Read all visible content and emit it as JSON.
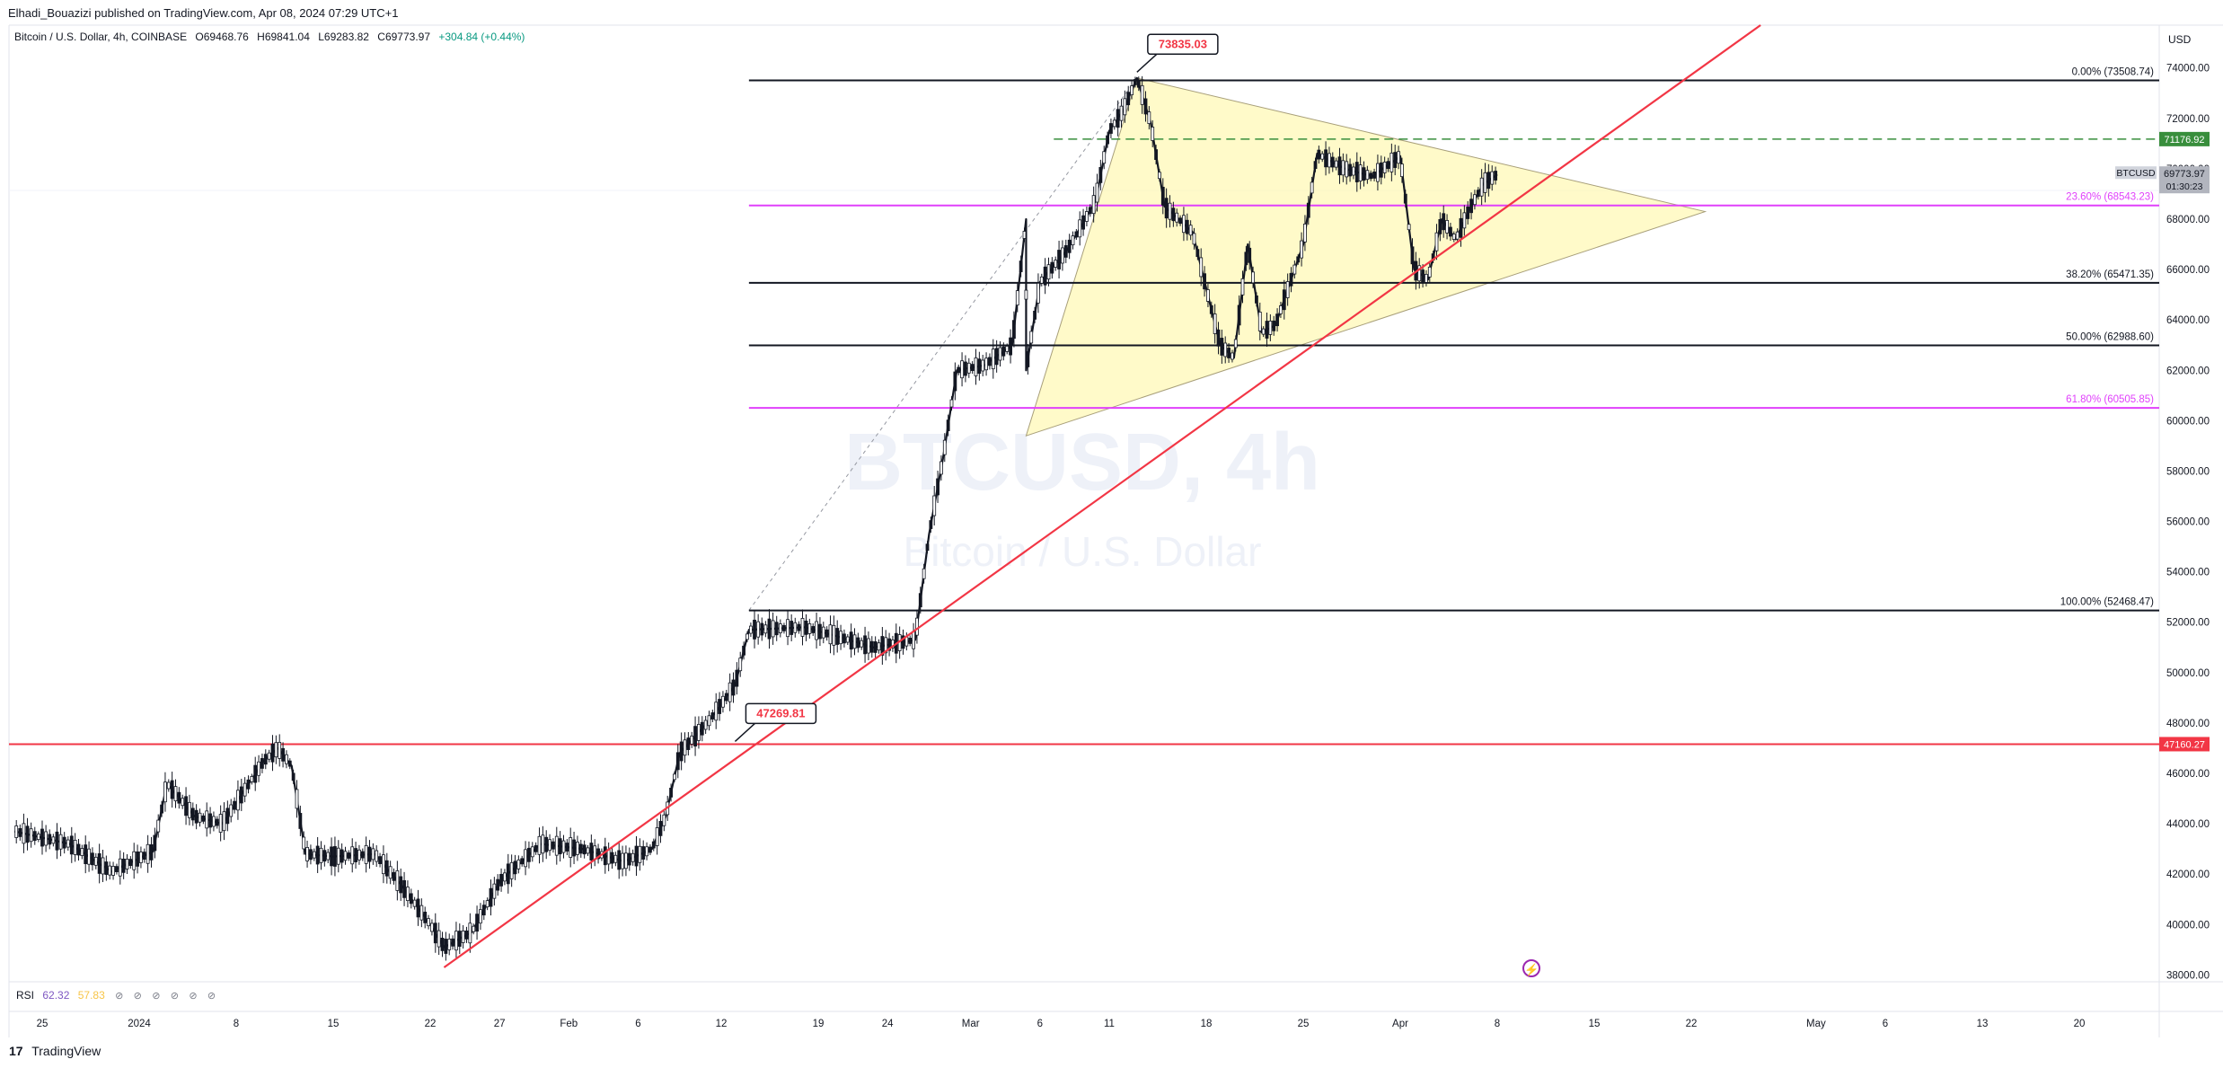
{
  "header": {
    "published": "Elhadi_Bouazizi published on TradingView.com, Apr 08, 2024 07:29 UTC+1"
  },
  "symbol": {
    "name": "Bitcoin / U.S. Dollar, 4h, COINBASE",
    "open": "O69468.76",
    "high": "H69841.04",
    "low": "L69283.82",
    "close": "C69773.97",
    "change": "+304.84 (+0.44%)"
  },
  "watermark": {
    "line1": "BTCUSD, 4h",
    "line2": "Bitcoin / U.S. Dollar"
  },
  "currency": "USD",
  "price_tag": {
    "symbol": "BTCUSD",
    "price": "69773.97",
    "countdown": "01:30:23"
  },
  "rsi": {
    "label": "RSI",
    "value1": "62.32",
    "value2": "57.83",
    "icons": [
      "eye-off-icon",
      "eye-off-icon",
      "eye-off-icon",
      "eye-off-icon",
      "eye-off-icon",
      "eye-off-icon"
    ]
  },
  "footer": {
    "logo": "17",
    "brand": "TradingView"
  },
  "colors": {
    "up": "#089981",
    "red": "#f23645",
    "magenta": "#e040fb",
    "triangle": "#fff59d",
    "green": "#388e3c"
  },
  "chart_data": {
    "type": "candlestick",
    "symbol": "BTCUSD",
    "interval": "4h",
    "ylim": [
      37800,
      75700
    ],
    "y_ticks": [
      "38000.00",
      "40000.00",
      "42000.00",
      "44000.00",
      "46000.00",
      "48000.00",
      "50000.00",
      "52000.00",
      "54000.00",
      "56000.00",
      "58000.00",
      "60000.00",
      "62000.00",
      "64000.00",
      "66000.00",
      "68000.00",
      "70000.00",
      "72000.00",
      "74000.00"
    ],
    "x_ticks": [
      {
        "label": "25",
        "date": "2023-12-25"
      },
      {
        "label": "2024",
        "date": "2024-01-01"
      },
      {
        "label": "8",
        "date": "2024-01-08"
      },
      {
        "label": "15",
        "date": "2024-01-15"
      },
      {
        "label": "22",
        "date": "2024-01-22"
      },
      {
        "label": "27",
        "date": "2024-01-27"
      },
      {
        "label": "Feb",
        "date": "2024-02-01"
      },
      {
        "label": "6",
        "date": "2024-02-06"
      },
      {
        "label": "12",
        "date": "2024-02-12"
      },
      {
        "label": "19",
        "date": "2024-02-19"
      },
      {
        "label": "24",
        "date": "2024-02-24"
      },
      {
        "label": "Mar",
        "date": "2024-03-01"
      },
      {
        "label": "6",
        "date": "2024-03-06"
      },
      {
        "label": "11",
        "date": "2024-03-11"
      },
      {
        "label": "18",
        "date": "2024-03-18"
      },
      {
        "label": "25",
        "date": "2024-03-25"
      },
      {
        "label": "Apr",
        "date": "2024-04-01"
      },
      {
        "label": "8",
        "date": "2024-04-08"
      },
      {
        "label": "15",
        "date": "2024-04-15"
      },
      {
        "label": "22",
        "date": "2024-04-22"
      },
      {
        "label": "May",
        "date": "2024-05-01"
      },
      {
        "label": "6",
        "date": "2024-05-06"
      },
      {
        "label": "13",
        "date": "2024-05-13"
      },
      {
        "label": "20",
        "date": "2024-05-20"
      }
    ],
    "price_path": [
      [
        "2023-12-23",
        43700
      ],
      [
        "2023-12-27",
        43200
      ],
      [
        "2023-12-30",
        42100
      ],
      [
        "2024-01-02",
        42900
      ],
      [
        "2024-01-03",
        45600
      ],
      [
        "2024-01-05",
        44300
      ],
      [
        "2024-01-07",
        44000
      ],
      [
        "2024-01-10",
        46500
      ],
      [
        "2024-01-11",
        47000
      ],
      [
        "2024-01-12",
        46300
      ],
      [
        "2024-01-13",
        42800
      ],
      [
        "2024-01-15",
        42700
      ],
      [
        "2024-01-18",
        42800
      ],
      [
        "2024-01-20",
        41500
      ],
      [
        "2024-01-22",
        40000
      ],
      [
        "2024-01-23",
        39100
      ],
      [
        "2024-01-25",
        39700
      ],
      [
        "2024-01-27",
        41700
      ],
      [
        "2024-01-30",
        43200
      ],
      [
        "2024-02-02",
        43000
      ],
      [
        "2024-02-05",
        42500
      ],
      [
        "2024-02-07",
        43000
      ],
      [
        "2024-02-08",
        44300
      ],
      [
        "2024-02-09",
        46800
      ],
      [
        "2024-02-11",
        48000
      ],
      [
        "2024-02-13",
        49500
      ],
      [
        "2024-02-14",
        51700
      ],
      [
        "2024-02-18",
        51800
      ],
      [
        "2024-02-20",
        51500
      ],
      [
        "2024-02-23",
        51000
      ],
      [
        "2024-02-26",
        51300
      ],
      [
        "2024-02-27",
        55500
      ],
      [
        "2024-02-28",
        58500
      ],
      [
        "2024-02-29",
        62000
      ],
      [
        "2024-03-02",
        62200
      ],
      [
        "2024-03-04",
        63000
      ],
      [
        "2024-03-05",
        68000
      ],
      [
        "2024-03-05",
        62000
      ],
      [
        "2024-03-06",
        65500
      ],
      [
        "2024-03-08",
        66800
      ],
      [
        "2024-03-10",
        68700
      ],
      [
        "2024-03-11",
        71500
      ],
      [
        "2024-03-12",
        72300
      ],
      [
        "2024-03-13",
        73600
      ],
      [
        "2024-03-14",
        71800
      ],
      [
        "2024-03-15",
        68500
      ],
      [
        "2024-03-17",
        67500
      ],
      [
        "2024-03-19",
        63000
      ],
      [
        "2024-03-20",
        62500
      ],
      [
        "2024-03-21",
        67000
      ],
      [
        "2024-03-22",
        63500
      ],
      [
        "2024-03-23",
        63800
      ],
      [
        "2024-03-25",
        67000
      ],
      [
        "2024-03-26",
        70600
      ],
      [
        "2024-03-28",
        70000
      ],
      [
        "2024-03-30",
        69700
      ],
      [
        "2024-04-01",
        70500
      ],
      [
        "2024-04-02",
        66000
      ],
      [
        "2024-04-03",
        65600
      ],
      [
        "2024-04-04",
        68000
      ],
      [
        "2024-04-05",
        67200
      ],
      [
        "2024-04-06",
        68400
      ],
      [
        "2024-04-07",
        69400
      ],
      [
        "2024-04-08",
        69774
      ]
    ],
    "fib_levels": [
      {
        "label": "0.00% (73508.74)",
        "value": 73508.74,
        "color": "#131722"
      },
      {
        "label": "23.60% (68543.23)",
        "value": 68543.23,
        "color": "#e040fb"
      },
      {
        "label": "38.20% (65471.35)",
        "value": 65471.35,
        "color": "#131722"
      },
      {
        "label": "50.00% (62988.60)",
        "value": 62988.6,
        "color": "#131722"
      },
      {
        "label": "61.80% (60505.85)",
        "value": 60505.85,
        "color": "#e040fb"
      },
      {
        "label": "100.00% (52468.47)",
        "value": 52468.47,
        "color": "#131722"
      }
    ],
    "fib_start_date": "2024-02-14",
    "triangle": [
      [
        "2024-03-05",
        59400
      ],
      [
        "2024-03-13",
        73600
      ],
      [
        "2024-04-23",
        68300
      ]
    ],
    "trendline": [
      [
        "2024-01-23",
        38300
      ],
      [
        "2024-04-27",
        75700
      ]
    ],
    "horizontal_red": {
      "value": 47160.27,
      "label": "47160.27"
    },
    "dashed_green": {
      "value": 71176.92,
      "label": "71176.92",
      "start_date": "2024-03-07"
    },
    "callouts": [
      {
        "label": "73835.03",
        "date": "2024-03-13",
        "value": 73835.03
      },
      {
        "label": "47269.81",
        "date": "2024-02-13",
        "value": 47269.81
      }
    ],
    "last_price": 69773.97
  }
}
